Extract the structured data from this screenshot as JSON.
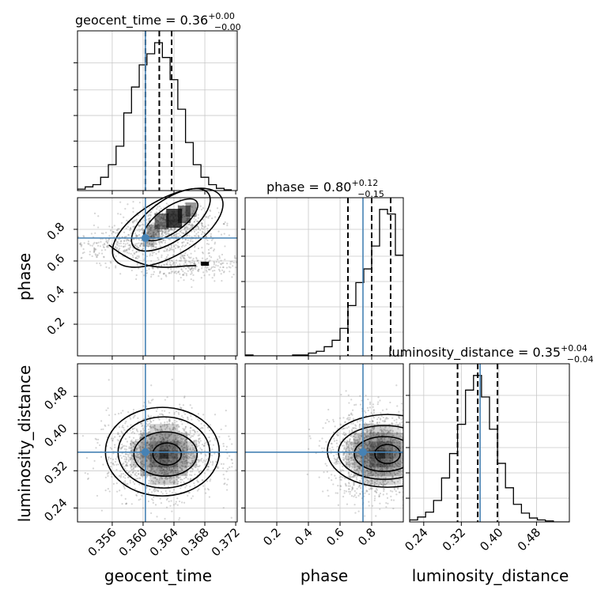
{
  "chart_data": [
    {
      "type": "histogram",
      "panel": "geocent_time-marginal",
      "title": {
        "name": "geocent_time",
        "median": "0.36",
        "plus": "+0.00",
        "minus": "−0.00"
      },
      "bin_edges": [
        0.3515,
        0.3525,
        0.3535,
        0.3545,
        0.3555,
        0.3565,
        0.3575,
        0.3585,
        0.3595,
        0.3605,
        0.3615,
        0.3625,
        0.3635,
        0.3645,
        0.3655,
        0.3665,
        0.3675,
        0.3685,
        0.3695,
        0.3705,
        0.3715
      ],
      "counts": [
        2,
        5,
        8,
        18,
        35,
        60,
        105,
        140,
        170,
        185,
        200,
        180,
        150,
        110,
        65,
        35,
        18,
        8,
        3,
        1
      ],
      "quantiles": [
        0.3603,
        0.3621,
        0.3637
      ],
      "truth": 0.3603,
      "xlim": [
        0.3515,
        0.3722
      ],
      "grid": true
    },
    {
      "type": "scatter+contour",
      "panel": "phase-vs-geocent_time",
      "xlabel": "",
      "ylabel": "phase",
      "xlim": [
        0.3515,
        0.3722
      ],
      "ylim": [
        0.0,
        1.0
      ],
      "yticks": [
        "0.2",
        "0.4",
        "0.6",
        "0.8"
      ],
      "truth": {
        "x": 0.3603,
        "y": 0.745
      },
      "density_peaks": [
        {
          "x": 0.3638,
          "y": 0.86
        },
        {
          "x": 0.3675,
          "y": 0.58
        }
      ],
      "grid": true
    },
    {
      "type": "histogram",
      "panel": "phase-marginal",
      "title": {
        "name": "phase",
        "median": "0.80",
        "plus": "+0.12",
        "minus": "−0.15"
      },
      "bin_edges": [
        0.0,
        0.05,
        0.1,
        0.15,
        0.2,
        0.25,
        0.3,
        0.35,
        0.4,
        0.45,
        0.5,
        0.55,
        0.6,
        0.65,
        0.7,
        0.75,
        0.8,
        0.85,
        0.9,
        0.95,
        1.0
      ],
      "counts": [
        1,
        0,
        0,
        0,
        0,
        0,
        1,
        1,
        3,
        5,
        10,
        17,
        30,
        55,
        80,
        95,
        120,
        160,
        155,
        110
      ],
      "quantiles": [
        0.65,
        0.8,
        0.92
      ],
      "truth": 0.745,
      "xlim": [
        0.0,
        1.0
      ],
      "grid": true
    },
    {
      "type": "scatter+contour",
      "panel": "luminosity_distance-vs-geocent_time",
      "xlabel": "geocent_time",
      "ylabel": "luminosity_distance",
      "xlim": [
        0.3515,
        0.3722
      ],
      "ylim": [
        0.21,
        0.55
      ],
      "xticks": [
        "0.356",
        "0.360",
        "0.364",
        "0.368",
        "0.372"
      ],
      "yticks": [
        "0.24",
        "0.32",
        "0.40",
        "0.48"
      ],
      "truth": {
        "x": 0.3603,
        "y": 0.36
      },
      "grid": true
    },
    {
      "type": "scatter+contour",
      "panel": "luminosity_distance-vs-phase",
      "xlabel": "phase",
      "ylabel": "",
      "xlim": [
        0.0,
        1.0
      ],
      "ylim": [
        0.21,
        0.55
      ],
      "xticks": [
        "0.2",
        "0.4",
        "0.6",
        "0.8"
      ],
      "truth": {
        "x": 0.745,
        "y": 0.36
      },
      "grid": true
    },
    {
      "type": "histogram",
      "panel": "luminosity_distance-marginal",
      "title": {
        "name": "luminosity_distance",
        "median": "0.35",
        "plus": "+0.04",
        "minus": "−0.04"
      },
      "xlabel": "luminosity_distance",
      "bin_edges": [
        0.21,
        0.227,
        0.244,
        0.261,
        0.278,
        0.295,
        0.312,
        0.329,
        0.346,
        0.363,
        0.38,
        0.397,
        0.414,
        0.431,
        0.448,
        0.465,
        0.482,
        0.499,
        0.516,
        0.533,
        0.55
      ],
      "counts": [
        2,
        5,
        10,
        22,
        45,
        70,
        100,
        135,
        150,
        128,
        95,
        60,
        35,
        18,
        9,
        4,
        2,
        1,
        0,
        0
      ],
      "quantiles": [
        0.312,
        0.355,
        0.397
      ],
      "truth": 0.36,
      "xticks": [
        "0.24",
        "0.32",
        "0.40",
        "0.48"
      ],
      "xlim": [
        0.21,
        0.55
      ],
      "grid": true
    }
  ],
  "colors": {
    "truth": "#4682b4",
    "hist": "#000000",
    "grid": "#c8c8c8",
    "points": "#888888"
  }
}
